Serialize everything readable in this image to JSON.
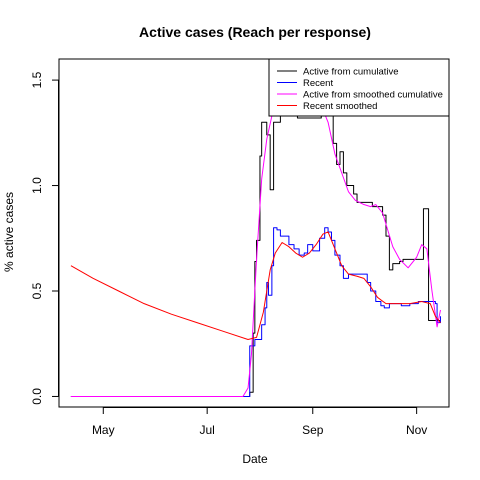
{
  "chart_data": {
    "type": "line",
    "title": "Active cases (Reach per response)",
    "xlabel": "Date",
    "ylabel": "% active cases",
    "xlim": [
      "2020-04-05",
      "2020-11-20"
    ],
    "ylim": [
      -0.05,
      1.6
    ],
    "x_ticks": [
      {
        "date": "2020-05-01",
        "label": "May"
      },
      {
        "date": "2020-07-01",
        "label": "Jul"
      },
      {
        "date": "2020-09-01",
        "label": "Sep"
      },
      {
        "date": "2020-11-01",
        "label": "Nov"
      }
    ],
    "y_ticks": [
      0.0,
      0.5,
      1.0,
      1.5
    ],
    "y_tick_labels": [
      "0.0",
      "0.5",
      "1.0",
      "1.5"
    ],
    "grid": false,
    "legend_position": "top-right",
    "series": [
      {
        "name": "Active from cumulative",
        "color": "#000000",
        "step": true,
        "points": [
          [
            "2020-04-12",
            0
          ],
          [
            "2020-07-22",
            0
          ],
          [
            "2020-07-26",
            0.02
          ],
          [
            "2020-07-28",
            0.3
          ],
          [
            "2020-07-29",
            0.64
          ],
          [
            "2020-07-30",
            0.74
          ],
          [
            "2020-07-31",
            0.74
          ],
          [
            "2020-08-01",
            1.14
          ],
          [
            "2020-08-02",
            1.3
          ],
          [
            "2020-08-04",
            1.3
          ],
          [
            "2020-08-05",
            1.24
          ],
          [
            "2020-08-06",
            1.24
          ],
          [
            "2020-08-07",
            0.98
          ],
          [
            "2020-08-08",
            0.98
          ],
          [
            "2020-08-09",
            1.3
          ],
          [
            "2020-08-13",
            1.42
          ],
          [
            "2020-08-16",
            1.52
          ],
          [
            "2020-08-20",
            1.52
          ],
          [
            "2020-08-23",
            1.32
          ],
          [
            "2020-08-27",
            1.32
          ],
          [
            "2020-09-01",
            1.32
          ],
          [
            "2020-09-06",
            1.44
          ],
          [
            "2020-09-10",
            1.37
          ],
          [
            "2020-09-13",
            1.2
          ],
          [
            "2020-09-15",
            1.1
          ],
          [
            "2020-09-17",
            1.16
          ],
          [
            "2020-09-19",
            1.06
          ],
          [
            "2020-09-21",
            1.0
          ],
          [
            "2020-09-25",
            0.96
          ],
          [
            "2020-09-27",
            0.92
          ],
          [
            "2020-10-03",
            0.92
          ],
          [
            "2020-10-06",
            0.9
          ],
          [
            "2020-10-09",
            0.9
          ],
          [
            "2020-10-12",
            0.86
          ],
          [
            "2020-10-14",
            0.76
          ],
          [
            "2020-10-16",
            0.6
          ],
          [
            "2020-10-18",
            0.63
          ],
          [
            "2020-10-21",
            0.63
          ],
          [
            "2020-10-22",
            0.64
          ],
          [
            "2020-10-24",
            0.65
          ],
          [
            "2020-11-01",
            0.65
          ],
          [
            "2020-11-05",
            0.89
          ],
          [
            "2020-11-07",
            0.89
          ],
          [
            "2020-11-08",
            0.36
          ],
          [
            "2020-11-12",
            0.36
          ],
          [
            "2020-11-15",
            0.36
          ]
        ]
      },
      {
        "name": "Recent",
        "color": "#0000ff",
        "step": true,
        "points": [
          [
            "2020-04-12",
            0
          ],
          [
            "2020-07-25",
            0
          ],
          [
            "2020-07-26",
            0.24
          ],
          [
            "2020-07-29",
            0.27
          ],
          [
            "2020-07-31",
            0.27
          ],
          [
            "2020-08-02",
            0.34
          ],
          [
            "2020-08-04",
            0.42
          ],
          [
            "2020-08-05",
            0.54
          ],
          [
            "2020-08-06",
            0.48
          ],
          [
            "2020-08-08",
            0.62
          ],
          [
            "2020-08-09",
            0.8
          ],
          [
            "2020-08-11",
            0.79
          ],
          [
            "2020-08-13",
            0.76
          ],
          [
            "2020-08-15",
            0.76
          ],
          [
            "2020-08-18",
            0.72
          ],
          [
            "2020-08-21",
            0.7
          ],
          [
            "2020-08-24",
            0.67
          ],
          [
            "2020-08-27",
            0.68
          ],
          [
            "2020-08-29",
            0.72
          ],
          [
            "2020-09-01",
            0.69
          ],
          [
            "2020-09-05",
            0.75
          ],
          [
            "2020-09-08",
            0.8
          ],
          [
            "2020-09-10",
            0.78
          ],
          [
            "2020-09-12",
            0.74
          ],
          [
            "2020-09-14",
            0.67
          ],
          [
            "2020-09-17",
            0.62
          ],
          [
            "2020-09-19",
            0.56
          ],
          [
            "2020-09-22",
            0.58
          ],
          [
            "2020-09-24",
            0.58
          ],
          [
            "2020-09-26",
            0.58
          ],
          [
            "2020-09-30",
            0.58
          ],
          [
            "2020-10-03",
            0.54
          ],
          [
            "2020-10-05",
            0.5
          ],
          [
            "2020-10-08",
            0.45
          ],
          [
            "2020-10-11",
            0.43
          ],
          [
            "2020-10-13",
            0.42
          ],
          [
            "2020-10-16",
            0.44
          ],
          [
            "2020-10-19",
            0.44
          ],
          [
            "2020-10-23",
            0.43
          ],
          [
            "2020-10-28",
            0.44
          ],
          [
            "2020-11-02",
            0.45
          ],
          [
            "2020-11-06",
            0.45
          ],
          [
            "2020-11-09",
            0.45
          ],
          [
            "2020-11-12",
            0.44
          ],
          [
            "2020-11-13",
            0.35
          ],
          [
            "2020-11-15",
            0.38
          ]
        ]
      },
      {
        "name": "Active from smoothed cumulative",
        "color": "#ff00ff",
        "step": false,
        "points": [
          [
            "2020-04-12",
            0
          ],
          [
            "2020-07-22",
            0
          ],
          [
            "2020-07-25",
            0.04
          ],
          [
            "2020-07-27",
            0.2
          ],
          [
            "2020-07-30",
            0.65
          ],
          [
            "2020-08-02",
            1.03
          ],
          [
            "2020-08-05",
            1.22
          ],
          [
            "2020-08-08",
            1.33
          ],
          [
            "2020-08-12",
            1.42
          ],
          [
            "2020-08-16",
            1.49
          ],
          [
            "2020-08-20",
            1.47
          ],
          [
            "2020-08-25",
            1.4
          ],
          [
            "2020-09-01",
            1.36
          ],
          [
            "2020-09-06",
            1.38
          ],
          [
            "2020-09-10",
            1.3
          ],
          [
            "2020-09-14",
            1.15
          ],
          [
            "2020-09-18",
            1.06
          ],
          [
            "2020-09-22",
            0.97
          ],
          [
            "2020-09-26",
            0.93
          ],
          [
            "2020-10-01",
            0.91
          ],
          [
            "2020-10-05",
            0.9
          ],
          [
            "2020-10-08",
            0.91
          ],
          [
            "2020-10-12",
            0.87
          ],
          [
            "2020-10-15",
            0.79
          ],
          [
            "2020-10-18",
            0.71
          ],
          [
            "2020-10-22",
            0.65
          ],
          [
            "2020-10-27",
            0.61
          ],
          [
            "2020-11-01",
            0.66
          ],
          [
            "2020-11-04",
            0.72
          ],
          [
            "2020-11-07",
            0.7
          ],
          [
            "2020-11-10",
            0.5
          ],
          [
            "2020-11-13",
            0.33
          ],
          [
            "2020-11-15",
            0.41
          ]
        ]
      },
      {
        "name": "Recent smoothed",
        "color": "#ff0000",
        "step": false,
        "points": [
          [
            "2020-04-12",
            0.62
          ],
          [
            "2020-04-25",
            0.56
          ],
          [
            "2020-05-10",
            0.5
          ],
          [
            "2020-05-25",
            0.44
          ],
          [
            "2020-06-10",
            0.39
          ],
          [
            "2020-06-25",
            0.35
          ],
          [
            "2020-07-10",
            0.31
          ],
          [
            "2020-07-25",
            0.27
          ],
          [
            "2020-07-30",
            0.28
          ],
          [
            "2020-08-03",
            0.4
          ],
          [
            "2020-08-07",
            0.6
          ],
          [
            "2020-08-10",
            0.68
          ],
          [
            "2020-08-14",
            0.73
          ],
          [
            "2020-08-18",
            0.71
          ],
          [
            "2020-08-22",
            0.68
          ],
          [
            "2020-08-26",
            0.66
          ],
          [
            "2020-08-30",
            0.68
          ],
          [
            "2020-09-03",
            0.72
          ],
          [
            "2020-09-07",
            0.77
          ],
          [
            "2020-09-10",
            0.78
          ],
          [
            "2020-09-14",
            0.7
          ],
          [
            "2020-09-18",
            0.62
          ],
          [
            "2020-09-22",
            0.58
          ],
          [
            "2020-09-27",
            0.57
          ],
          [
            "2020-10-01",
            0.56
          ],
          [
            "2020-10-05",
            0.52
          ],
          [
            "2020-10-09",
            0.47
          ],
          [
            "2020-10-14",
            0.44
          ],
          [
            "2020-10-20",
            0.44
          ],
          [
            "2020-10-28",
            0.44
          ],
          [
            "2020-11-04",
            0.45
          ],
          [
            "2020-11-09",
            0.44
          ],
          [
            "2020-11-12",
            0.38
          ],
          [
            "2020-11-15",
            0.35
          ]
        ]
      }
    ]
  }
}
